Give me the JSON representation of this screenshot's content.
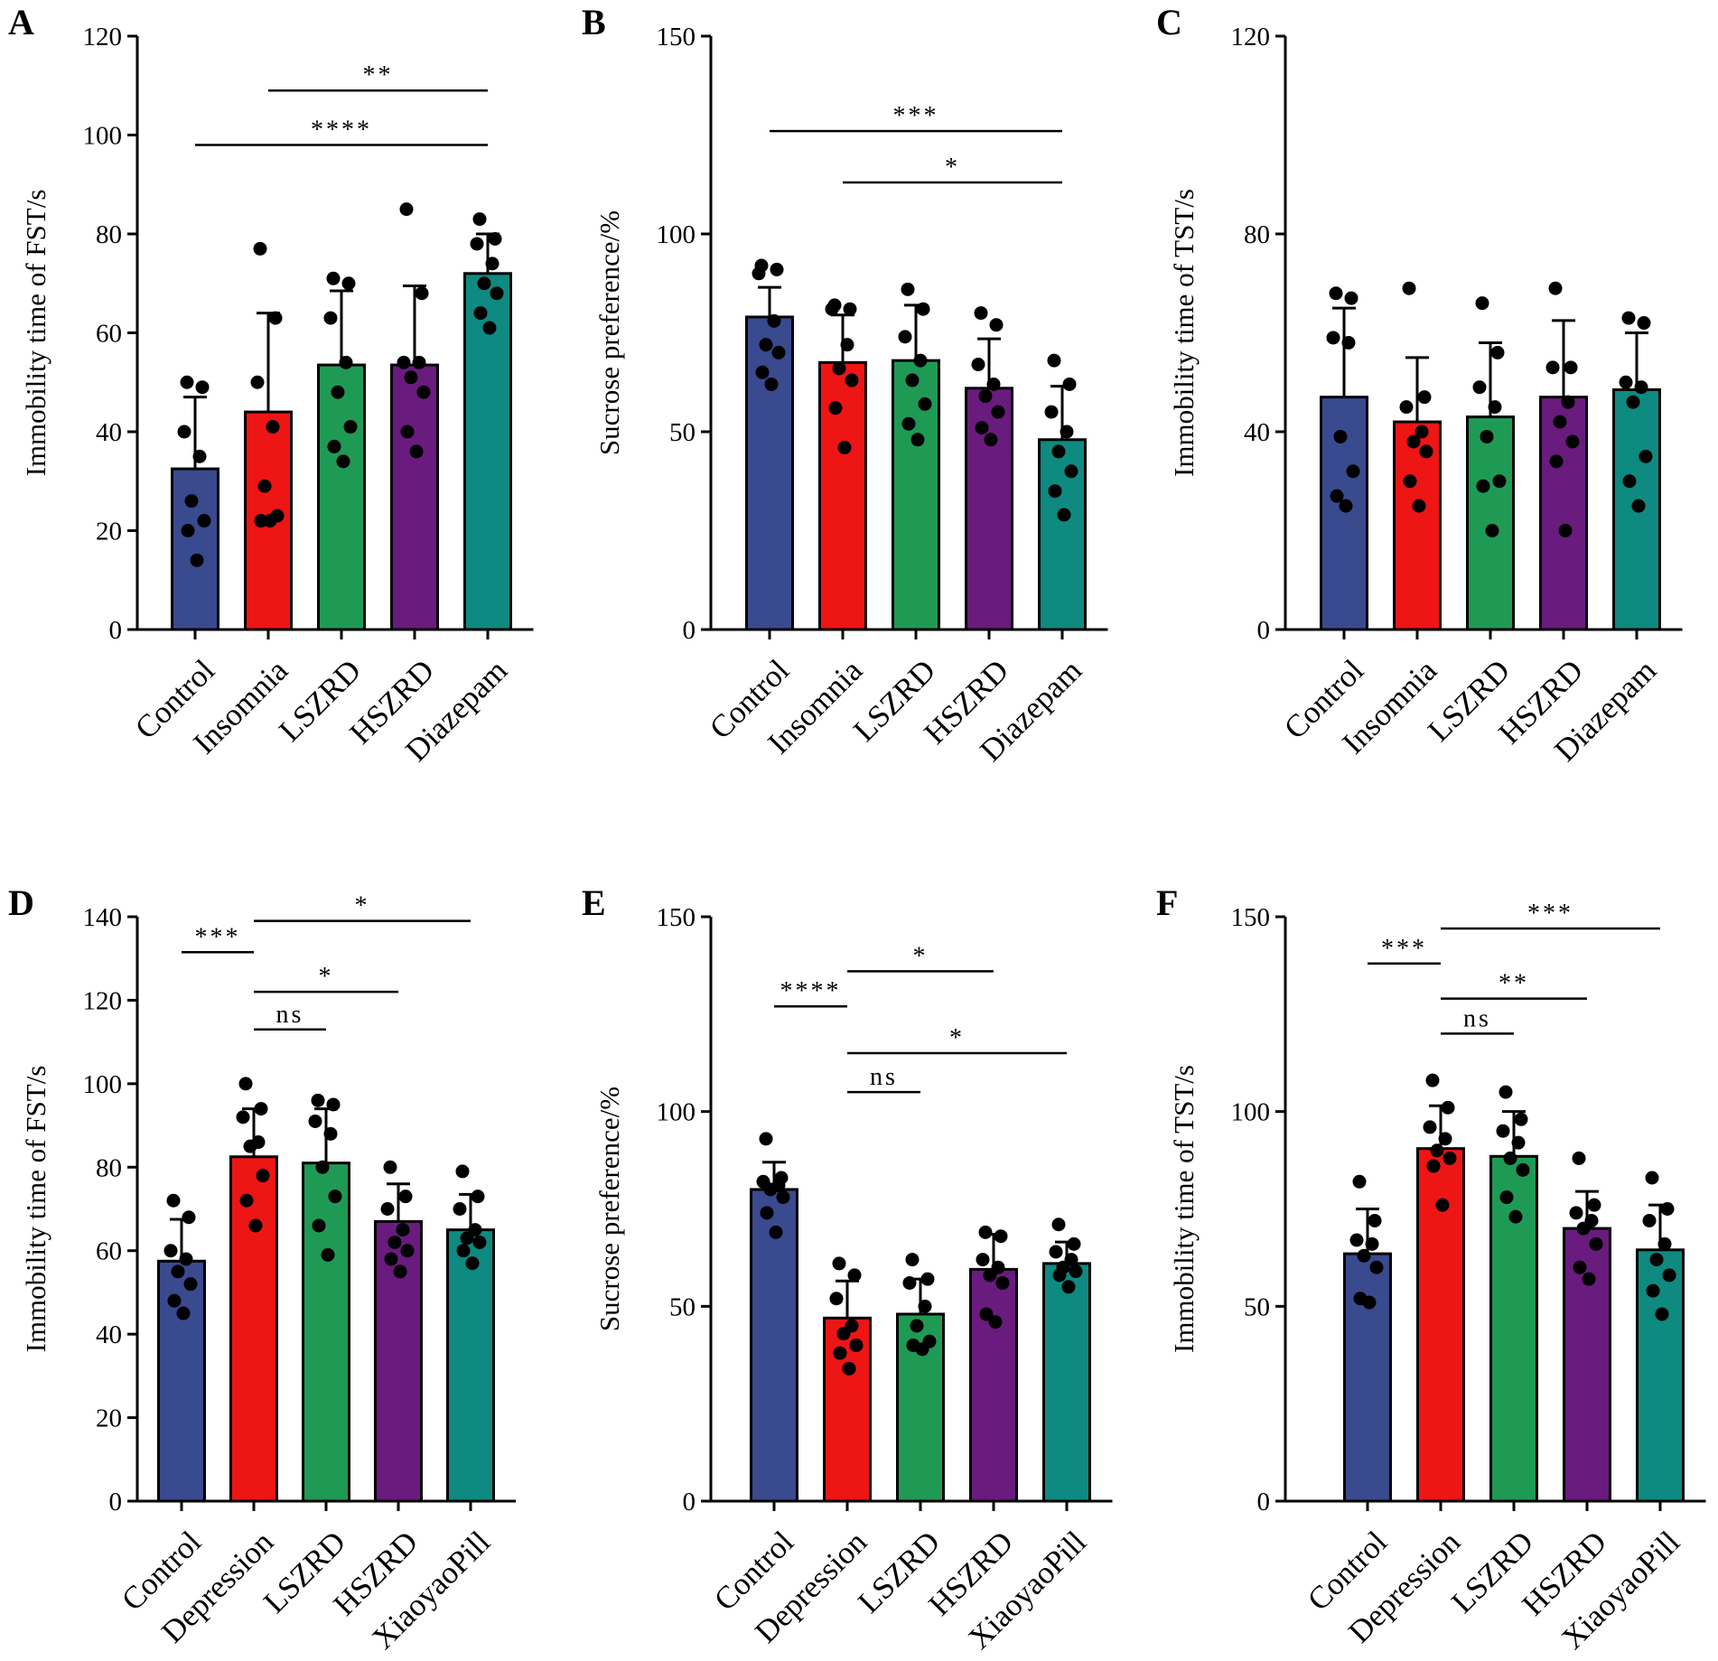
{
  "figure": {
    "group_colors": [
      "#3a4a8f",
      "#ee1515",
      "#1f9a55",
      "#6a1b7e",
      "#0e8a80"
    ],
    "axis_color": "#000000",
    "dot_color": "#000000"
  },
  "chart_data": [
    {
      "type": "bar",
      "panel": "A",
      "ylabel": "Immobility time of FST/s",
      "ylim": [
        0,
        120
      ],
      "yticks": [
        0,
        20,
        40,
        60,
        80,
        100,
        120
      ],
      "categories": [
        "Control",
        "Insomnia",
        "LSZRD",
        "HSZRD",
        "Diazepam"
      ],
      "values": [
        32.5,
        44,
        53.5,
        53.5,
        72
      ],
      "errors": [
        14.5,
        20,
        15,
        16,
        8
      ],
      "points": [
        [
          50,
          49,
          40,
          35,
          26,
          22,
          20,
          14
        ],
        [
          77,
          63,
          50,
          41,
          29,
          23,
          22,
          22
        ],
        [
          71,
          70,
          63,
          54,
          48,
          41,
          37,
          34
        ],
        [
          85,
          68,
          54,
          54,
          51,
          48,
          40,
          36
        ],
        [
          83,
          79,
          78,
          74,
          70,
          68,
          64,
          61
        ]
      ],
      "significance": [
        {
          "from": 1,
          "to": 4,
          "label": "**",
          "y": 109
        },
        {
          "from": 0,
          "to": 4,
          "label": "****",
          "y": 98
        }
      ]
    },
    {
      "type": "bar",
      "panel": "B",
      "ylabel": "Sucrose preference/%",
      "ylim": [
        0,
        150
      ],
      "yticks": [
        0,
        50,
        100,
        150
      ],
      "categories": [
        "Control",
        "Insomnia",
        "LSZRD",
        "HSZRD",
        "Diazepam"
      ],
      "values": [
        79,
        67.5,
        68,
        61,
        48
      ],
      "errors": [
        7.5,
        12,
        14,
        12.5,
        13.5
      ],
      "points": [
        [
          92,
          91,
          90,
          78,
          72,
          70,
          65,
          62
        ],
        [
          82,
          81,
          81,
          72,
          66,
          63,
          56,
          46
        ],
        [
          86,
          81,
          74,
          68,
          63,
          57,
          52,
          48
        ],
        [
          80,
          77,
          67,
          62,
          59,
          55,
          51,
          48
        ],
        [
          68,
          62,
          55,
          50,
          45,
          40,
          35,
          29
        ]
      ],
      "significance": [
        {
          "from": 0,
          "to": 4,
          "label": "***",
          "y": 126
        },
        {
          "from": 1,
          "to": 4,
          "label": "*",
          "y": 113
        }
      ]
    },
    {
      "type": "bar",
      "panel": "C",
      "ylabel": "Immobility time of TST/s",
      "ylim": [
        0,
        120
      ],
      "yticks": [
        0,
        40,
        80,
        120
      ],
      "categories": [
        "Control",
        "Insomnia",
        "LSZRD",
        "HSZRD",
        "Diazepam"
      ],
      "values": [
        47,
        42,
        43,
        47,
        48.5
      ],
      "errors": [
        18,
        13,
        15,
        15.5,
        11.5
      ],
      "points": [
        [
          68,
          67,
          59,
          58,
          39,
          32,
          27,
          25
        ],
        [
          69,
          47,
          45,
          40,
          38,
          36,
          30,
          25
        ],
        [
          66,
          56,
          49,
          45,
          39,
          30,
          29,
          20
        ],
        [
          69,
          53,
          53,
          46,
          42,
          38,
          34,
          20
        ],
        [
          63,
          62,
          50,
          49,
          46,
          35,
          30,
          25
        ]
      ],
      "significance": []
    },
    {
      "type": "bar",
      "panel": "D",
      "ylabel": "Immobility time of FST/s",
      "ylim": [
        0,
        140
      ],
      "yticks": [
        0,
        20,
        40,
        60,
        80,
        100,
        120,
        140
      ],
      "categories": [
        "Control",
        "Depression",
        "LSZRD",
        "HSZRD",
        "XiaoyaoPill"
      ],
      "values": [
        57.5,
        82.5,
        81,
        67,
        65
      ],
      "errors": [
        10,
        11.5,
        13,
        9,
        8.5
      ],
      "points": [
        [
          72,
          68,
          60,
          58,
          55,
          52,
          48,
          45
        ],
        [
          100,
          94,
          92,
          86,
          85,
          78,
          72,
          66
        ],
        [
          96,
          95,
          91,
          88,
          80,
          73,
          66,
          59
        ],
        [
          80,
          73,
          70,
          65,
          62,
          60,
          58,
          55
        ],
        [
          79,
          73,
          70,
          65,
          63,
          62,
          60,
          57
        ]
      ],
      "significance": [
        {
          "from": 0,
          "to": 1,
          "label": "***",
          "y": 131.5
        },
        {
          "from": 1,
          "to": 4,
          "label": "*",
          "y": 139
        },
        {
          "from": 1,
          "to": 3,
          "label": "*",
          "y": 122
        },
        {
          "from": 1,
          "to": 2,
          "label": "ns",
          "y": 113
        }
      ]
    },
    {
      "type": "bar",
      "panel": "E",
      "ylabel": "Sucrose preference/%",
      "ylim": [
        0,
        150
      ],
      "yticks": [
        0,
        50,
        100,
        150
      ],
      "categories": [
        "Control",
        "Depression",
        "LSZRD",
        "HSZRD",
        "XiaoyaoPill"
      ],
      "values": [
        80,
        47,
        48,
        59.5,
        61
      ],
      "errors": [
        7,
        9.5,
        9,
        9,
        5.5
      ],
      "points": [
        [
          93,
          83,
          82,
          81,
          80,
          78,
          74,
          69
        ],
        [
          61,
          58,
          52,
          45,
          43,
          40,
          38,
          34
        ],
        [
          62,
          57,
          56,
          50,
          45,
          41,
          40,
          39
        ],
        [
          69,
          68,
          62,
          60,
          58,
          56,
          48,
          46
        ],
        [
          71,
          66,
          64,
          62,
          60,
          59,
          58,
          55
        ]
      ],
      "significance": [
        {
          "from": 1,
          "to": 3,
          "label": "*",
          "y": 136
        },
        {
          "from": 0,
          "to": 1,
          "label": "****",
          "y": 127
        },
        {
          "from": 1,
          "to": 4,
          "label": "*",
          "y": 115
        },
        {
          "from": 1,
          "to": 2,
          "label": "ns",
          "y": 105
        }
      ]
    },
    {
      "type": "bar",
      "panel": "F",
      "ylabel": "Immobility time of TST/s",
      "ylim": [
        0,
        150
      ],
      "yticks": [
        0,
        50,
        100,
        150
      ],
      "categories": [
        "Control",
        "Depression",
        "LSZRD",
        "HSZRD",
        "XiaoyaoPill"
      ],
      "values": [
        63.5,
        90.5,
        88.5,
        70,
        64.5
      ],
      "errors": [
        11.5,
        11,
        11.5,
        9.5,
        11.5
      ],
      "points": [
        [
          82,
          72,
          67,
          66,
          63,
          60,
          52,
          51
        ],
        [
          108,
          101,
          96,
          93,
          90,
          88,
          86,
          76
        ],
        [
          105,
          98,
          95,
          92,
          88,
          85,
          78,
          73
        ],
        [
          88,
          76,
          74,
          72,
          70,
          66,
          60,
          57
        ],
        [
          83,
          75,
          72,
          66,
          62,
          58,
          54,
          48
        ]
      ],
      "significance": [
        {
          "from": 0,
          "to": 1,
          "label": "***",
          "y": 138
        },
        {
          "from": 1,
          "to": 4,
          "label": "***",
          "y": 147
        },
        {
          "from": 1,
          "to": 3,
          "label": "**",
          "y": 129
        },
        {
          "from": 1,
          "to": 2,
          "label": "ns",
          "y": 120
        }
      ]
    }
  ]
}
